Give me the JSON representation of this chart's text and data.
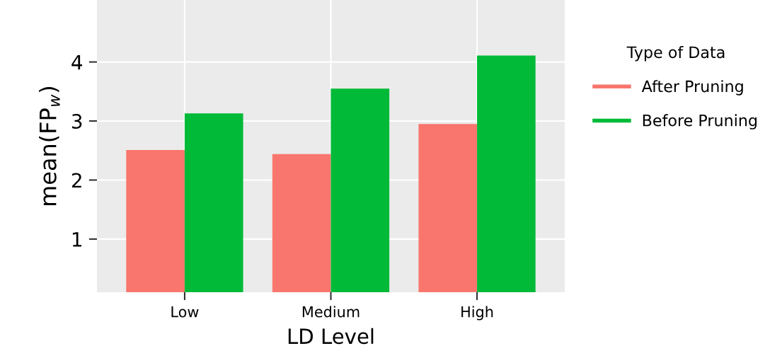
{
  "chart_data": {
    "type": "bar",
    "xlabel": "LD Level",
    "ylabel": "mean(FP$_{w}$)",
    "legend_title": "Type of Data",
    "categories": [
      "Low",
      "Medium",
      "High"
    ],
    "series": [
      {
        "name": "After Pruning",
        "color": "#f8766d",
        "values": [
          2.51,
          2.44,
          2.95
        ]
      },
      {
        "name": "Before Pruning",
        "color": "#00ba38",
        "values": [
          3.13,
          3.55,
          4.11
        ]
      }
    ],
    "ylim": [
      0.1,
      5.05
    ],
    "yticks": [
      1,
      2,
      3,
      4
    ],
    "grid": true,
    "legend": "right"
  }
}
